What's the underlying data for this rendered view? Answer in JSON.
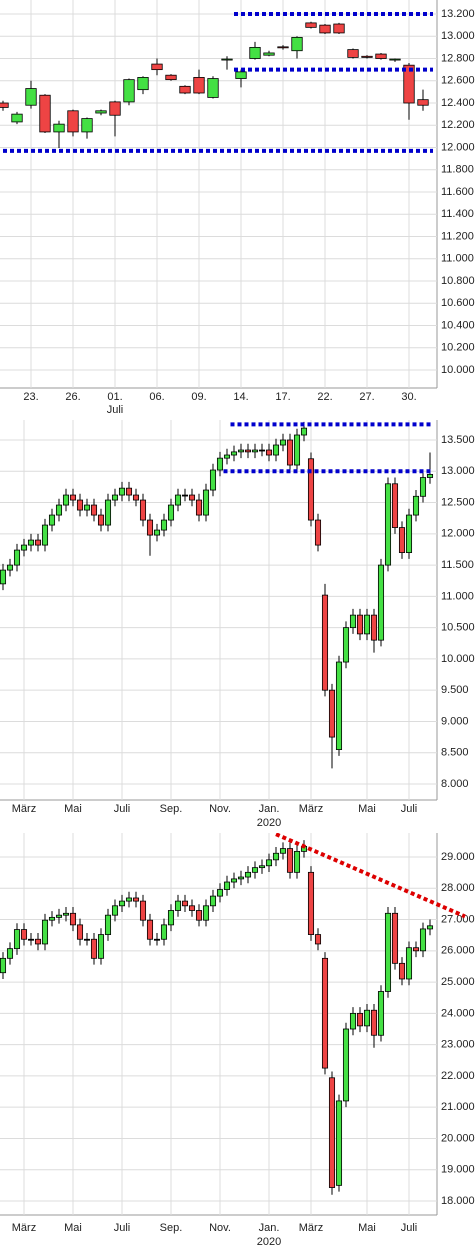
{
  "chart_data": [
    {
      "type": "candlestick",
      "categories": [
        null,
        null,
        "23.",
        null,
        null,
        "26.",
        null,
        null,
        "01.",
        null,
        null,
        "06.",
        null,
        null,
        "09.",
        null,
        null,
        "14.",
        null,
        null,
        "17.",
        null,
        null,
        "22.",
        null,
        null,
        "27.",
        null,
        null,
        "30.",
        null
      ],
      "x_sublabels": [
        null,
        null,
        null,
        null,
        null,
        null,
        null,
        null,
        "Juli",
        null,
        null,
        null,
        null,
        null,
        null,
        null,
        null,
        null,
        null,
        null,
        null,
        null,
        null,
        null,
        null,
        null,
        null,
        null,
        null,
        null,
        null
      ],
      "open": [
        12400,
        12230,
        12380,
        12470,
        12140,
        12330,
        12140,
        12310,
        12410,
        12410,
        12520,
        12750,
        12650,
        12550,
        12630,
        12450,
        12790,
        12620,
        12800,
        12830,
        12905,
        12870,
        13120,
        13100,
        13110,
        12880,
        12820,
        12840,
        12790,
        12740,
        12430
      ],
      "high": [
        12420,
        12320,
        12600,
        12480,
        12240,
        12340,
        12270,
        12340,
        12420,
        12620,
        12640,
        12800,
        12660,
        12560,
        12700,
        12640,
        12820,
        12700,
        12950,
        12870,
        12920,
        13000,
        13130,
        13110,
        13120,
        12890,
        12830,
        12850,
        12800,
        12760,
        12520
      ],
      "low": [
        12330,
        12210,
        12350,
        12130,
        11995,
        12100,
        12080,
        12290,
        12100,
        12380,
        12480,
        12650,
        12600,
        12480,
        12480,
        12440,
        12700,
        12540,
        12790,
        12820,
        12880,
        12800,
        13070,
        13020,
        13020,
        12800,
        12800,
        12790,
        12770,
        12250,
        12330
      ],
      "close": [
        12360,
        12300,
        12530,
        12140,
        12210,
        12140,
        12260,
        12330,
        12290,
        12610,
        12630,
        12700,
        12610,
        12490,
        12490,
        12620,
        12795,
        12680,
        12900,
        12850,
        12900,
        12990,
        13080,
        13030,
        13030,
        12810,
        12810,
        12800,
        12795,
        12400,
        12380
      ],
      "up_color": "#44e044",
      "down_color": "#ee4444",
      "ylim": [
        9838,
        13326
      ],
      "yticks": [
        {
          "value": 10000,
          "label": "10.000"
        },
        {
          "value": 10200,
          "label": "10.200"
        },
        {
          "value": 10400,
          "label": "10.400"
        },
        {
          "value": 10600,
          "label": "10.600"
        },
        {
          "value": 10800,
          "label": "10.800"
        },
        {
          "value": 11000,
          "label": "11.000"
        },
        {
          "value": 11200,
          "label": "11.200"
        },
        {
          "value": 11400,
          "label": "11.400"
        },
        {
          "value": 11600,
          "label": "11.600"
        },
        {
          "value": 11800,
          "label": "11.800"
        },
        {
          "value": 12000,
          "label": "12.000"
        },
        {
          "value": 12200,
          "label": "12.200"
        },
        {
          "value": 12400,
          "label": "12.400"
        },
        {
          "value": 12600,
          "label": "12.600"
        },
        {
          "value": 12800,
          "label": "12.800"
        },
        {
          "value": 13000,
          "label": "13.000"
        },
        {
          "value": 13200,
          "label": "13.200"
        }
      ],
      "grid": true,
      "hlines": [
        {
          "value": 13200,
          "from": 17,
          "color": "#0000cc"
        },
        {
          "value": 12700,
          "from": 17,
          "color": "#0000cc"
        },
        {
          "value": 11970,
          "from": 0,
          "color": "#0000cc"
        }
      ]
    },
    {
      "type": "candlestick",
      "categories": [
        null,
        null,
        null,
        "März",
        null,
        null,
        null,
        null,
        null,
        null,
        "Mai",
        null,
        null,
        null,
        null,
        null,
        null,
        "Juli",
        null,
        null,
        null,
        null,
        null,
        null,
        "Sep.",
        null,
        null,
        null,
        null,
        null,
        null,
        "Nov.",
        null,
        null,
        null,
        null,
        null,
        null,
        "Jan.",
        null,
        null,
        null,
        null,
        null,
        "März",
        null,
        null,
        null,
        null,
        null,
        null,
        null,
        "Mai",
        null,
        null,
        null,
        null,
        null,
        "Juli",
        null,
        null,
        null
      ],
      "x_sublabels": [
        null,
        null,
        null,
        null,
        null,
        null,
        null,
        null,
        null,
        null,
        null,
        null,
        null,
        null,
        null,
        null,
        null,
        null,
        null,
        null,
        null,
        null,
        null,
        null,
        null,
        null,
        null,
        null,
        null,
        null,
        null,
        null,
        null,
        null,
        null,
        null,
        null,
        null,
        "2020",
        null,
        null,
        null,
        null,
        null,
        null,
        null,
        null,
        null,
        null,
        null,
        null,
        null,
        null,
        null,
        null,
        null,
        null,
        null,
        null,
        null,
        null,
        null
      ],
      "open": [
        11200,
        11420,
        11500,
        11740,
        11820,
        11900,
        11820,
        12140,
        12300,
        12460,
        12620,
        12540,
        12380,
        12460,
        12300,
        12140,
        12540,
        12620,
        12730,
        12620,
        12540,
        12220,
        11980,
        12060,
        12220,
        12460,
        12620,
        12620,
        12540,
        12300,
        12700,
        13020,
        13210,
        13260,
        13310,
        13340,
        13310,
        13340,
        13340,
        13260,
        13420,
        13500,
        13100,
        13580,
        13200,
        12220,
        11020,
        9500,
        8550,
        9950,
        10500,
        10700,
        10400,
        10700,
        10300,
        11500,
        12800,
        12100,
        11700,
        12300,
        12600,
        12900
      ],
      "high": [
        11520,
        11600,
        11840,
        11920,
        12000,
        12000,
        12240,
        12400,
        12560,
        12720,
        12720,
        12640,
        12560,
        12560,
        12400,
        12640,
        12720,
        12830,
        12830,
        12720,
        12640,
        12320,
        12160,
        12320,
        12560,
        12720,
        12720,
        12720,
        12640,
        12800,
        13120,
        13310,
        13360,
        13410,
        13440,
        13440,
        13440,
        13440,
        13440,
        13520,
        13600,
        13600,
        13680,
        13790,
        13300,
        12320,
        11200,
        9600,
        10050,
        10600,
        10800,
        10800,
        10800,
        10800,
        11600,
        12900,
        12900,
        12200,
        12400,
        12700,
        13000,
        13300
      ],
      "low": [
        11100,
        11320,
        11400,
        11640,
        11720,
        11720,
        11720,
        12040,
        12200,
        12360,
        12440,
        12280,
        12280,
        12200,
        12040,
        12040,
        12440,
        12520,
        12520,
        12440,
        12120,
        11650,
        11880,
        11960,
        12120,
        12360,
        12520,
        12440,
        12200,
        12200,
        12600,
        12920,
        13110,
        13160,
        13210,
        13210,
        13210,
        13240,
        13160,
        13160,
        13320,
        13000,
        13000,
        13480,
        12120,
        11720,
        9400,
        8250,
        8450,
        9850,
        10400,
        10300,
        10300,
        10100,
        10200,
        11400,
        12000,
        11600,
        11600,
        12200,
        12500,
        12800
      ],
      "close": [
        11420,
        11500,
        11740,
        11820,
        11900,
        11820,
        12140,
        12300,
        12460,
        12620,
        12540,
        12380,
        12460,
        12300,
        12140,
        12540,
        12620,
        12730,
        12620,
        12540,
        12220,
        11980,
        12060,
        12220,
        12460,
        12620,
        12620,
        12540,
        12300,
        12700,
        13020,
        13210,
        13260,
        13310,
        13340,
        13310,
        13340,
        13340,
        13260,
        13420,
        13500,
        13100,
        13580,
        13690,
        12220,
        11820,
        9500,
        8750,
        9950,
        10500,
        10700,
        10400,
        10700,
        10300,
        11500,
        12800,
        12100,
        11700,
        12300,
        12600,
        12900,
        12950
      ],
      "up_color": "#44e044",
      "down_color": "#ee4444",
      "ylim": [
        7744,
        13820
      ],
      "yticks": [
        {
          "value": 8000,
          "label": "8.000"
        },
        {
          "value": 8500,
          "label": "8.500"
        },
        {
          "value": 9000,
          "label": "9.000"
        },
        {
          "value": 9500,
          "label": "9.500"
        },
        {
          "value": 10000,
          "label": "10.000"
        },
        {
          "value": 10500,
          "label": "10.500"
        },
        {
          "value": 11000,
          "label": "11.000"
        },
        {
          "value": 11500,
          "label": "11.500"
        },
        {
          "value": 12000,
          "label": "12.000"
        },
        {
          "value": 12500,
          "label": "12.500"
        },
        {
          "value": 13000,
          "label": "13.000"
        },
        {
          "value": 13500,
          "label": "13.500"
        }
      ],
      "grid": true,
      "hlines": [
        {
          "value": 13750,
          "from": 33,
          "color": "#0000cc"
        },
        {
          "value": 13000,
          "from": 32,
          "color": "#0000cc"
        }
      ]
    },
    {
      "type": "candlestick",
      "categories": [
        null,
        null,
        null,
        "März",
        null,
        null,
        null,
        null,
        null,
        null,
        "Mai",
        null,
        null,
        null,
        null,
        null,
        null,
        "Juli",
        null,
        null,
        null,
        null,
        null,
        null,
        "Sep.",
        null,
        null,
        null,
        null,
        null,
        null,
        "Nov.",
        null,
        null,
        null,
        null,
        null,
        null,
        "Jan.",
        null,
        null,
        null,
        null,
        null,
        "März",
        null,
        null,
        null,
        null,
        null,
        null,
        null,
        "Mai",
        null,
        null,
        null,
        null,
        null,
        "Juli",
        null,
        null,
        null
      ],
      "x_sublabels": [
        null,
        null,
        null,
        null,
        null,
        null,
        null,
        null,
        null,
        null,
        null,
        null,
        null,
        null,
        null,
        null,
        null,
        null,
        null,
        null,
        null,
        null,
        null,
        null,
        null,
        null,
        null,
        null,
        null,
        null,
        null,
        null,
        null,
        null,
        null,
        null,
        null,
        null,
        "2020",
        null,
        null,
        null,
        null,
        null,
        null,
        null,
        null,
        null,
        null,
        null,
        null,
        null,
        null,
        null,
        null,
        null,
        null,
        null,
        null,
        null,
        null,
        null
      ],
      "open": [
        25300,
        25760,
        26070,
        26680,
        26370,
        26370,
        26220,
        26980,
        27070,
        27140,
        27200,
        26830,
        26370,
        26370,
        25760,
        26520,
        27140,
        27440,
        27590,
        27690,
        27590,
        26980,
        26370,
        26370,
        26830,
        27290,
        27590,
        27440,
        27290,
        26980,
        27440,
        27750,
        27960,
        28200,
        28300,
        28360,
        28510,
        28660,
        28720,
        28910,
        29120,
        29270,
        28510,
        29180,
        28510,
        26520,
        25760,
        21940,
        18500,
        21200,
        23500,
        24000,
        23600,
        24100,
        23300,
        24700,
        27200,
        25600,
        25100,
        26100,
        26000,
        26700
      ],
      "high": [
        25960,
        26270,
        26880,
        26880,
        26570,
        26570,
        27180,
        27270,
        27340,
        27400,
        27400,
        27030,
        26570,
        26570,
        26720,
        27340,
        27640,
        27790,
        27890,
        27890,
        27790,
        27180,
        26570,
        27030,
        27490,
        27790,
        27790,
        27640,
        27490,
        27640,
        27950,
        28160,
        28400,
        28500,
        28560,
        28710,
        28860,
        28920,
        29110,
        29320,
        29470,
        29470,
        29380,
        29540,
        28710,
        26720,
        25960,
        22140,
        21400,
        23700,
        24200,
        24200,
        24300,
        24300,
        24900,
        27400,
        27400,
        25800,
        26300,
        26300,
        26900,
        27000
      ],
      "low": [
        25100,
        25560,
        25870,
        26170,
        26170,
        26020,
        26020,
        26780,
        26870,
        26940,
        26630,
        26170,
        26170,
        25560,
        25560,
        26320,
        26940,
        27240,
        27390,
        27390,
        26780,
        26170,
        26170,
        26170,
        26630,
        27090,
        27240,
        27090,
        26780,
        26780,
        27240,
        27550,
        27760,
        28000,
        28100,
        28160,
        28310,
        28460,
        28520,
        28710,
        28920,
        28310,
        28310,
        28980,
        26320,
        26020,
        22050,
        18200,
        18300,
        21000,
        23300,
        23400,
        23400,
        22900,
        23100,
        24500,
        25400,
        24900,
        24900,
        25800,
        25800,
        26500
      ],
      "close": [
        25760,
        26070,
        26680,
        26370,
        26370,
        26220,
        26980,
        27070,
        27140,
        27200,
        26830,
        26370,
        26370,
        25760,
        26520,
        27140,
        27440,
        27590,
        27690,
        27590,
        26980,
        26370,
        26370,
        26830,
        27290,
        27590,
        27440,
        27290,
        26980,
        27440,
        27750,
        27960,
        28200,
        28300,
        28360,
        28510,
        28660,
        28720,
        28910,
        29120,
        29270,
        28510,
        29180,
        29340,
        26520,
        26220,
        22250,
        18430,
        21200,
        23500,
        24000,
        23600,
        24100,
        23300,
        24700,
        27200,
        25600,
        25100,
        26100,
        26000,
        26700,
        26800
      ],
      "up_color": "#44e044",
      "down_color": "#ee4444",
      "ylim": [
        17552,
        29768
      ],
      "yticks": [
        {
          "value": 18000,
          "label": "18.000"
        },
        {
          "value": 19000,
          "label": "19.000"
        },
        {
          "value": 20000,
          "label": "20.000"
        },
        {
          "value": 21000,
          "label": "21.000"
        },
        {
          "value": 22000,
          "label": "22.000"
        },
        {
          "value": 23000,
          "label": "23.000"
        },
        {
          "value": 24000,
          "label": "24.000"
        },
        {
          "value": 25000,
          "label": "25.000"
        },
        {
          "value": 26000,
          "label": "26.000"
        },
        {
          "value": 27000,
          "label": "27.000"
        },
        {
          "value": 28000,
          "label": "28.000"
        },
        {
          "value": 29000,
          "label": "29.000"
        }
      ],
      "grid": true,
      "trendline": {
        "from_index": 39,
        "from_value": 29730,
        "to_index": 66,
        "to_value": 27100,
        "color": "#dd0000"
      }
    }
  ]
}
